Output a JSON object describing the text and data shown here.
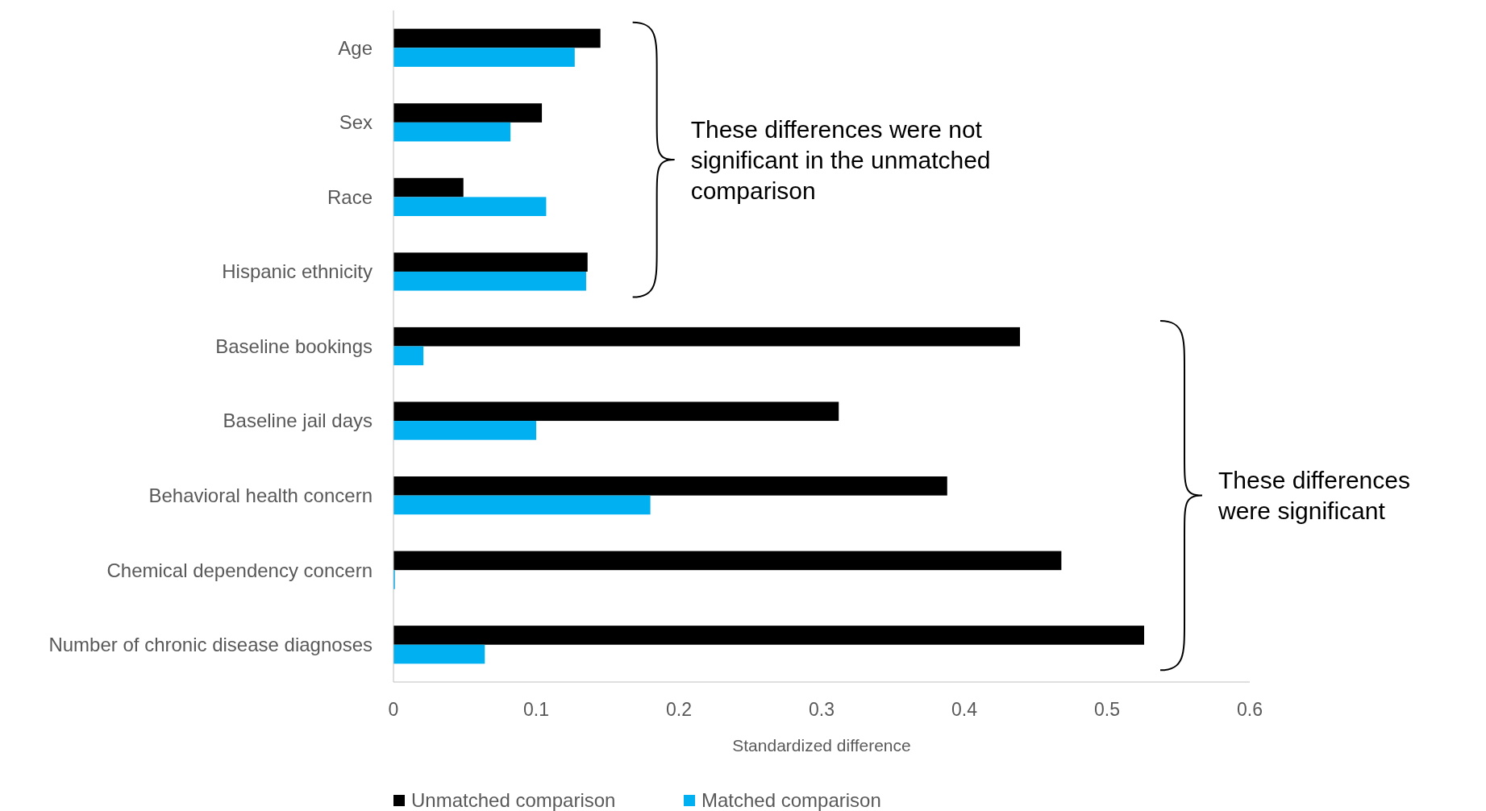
{
  "chart_data": {
    "type": "bar",
    "orientation": "horizontal",
    "xlabel": "Standardized difference",
    "categories": [
      "Age",
      "Sex",
      "Race",
      "Hispanic ethnicity",
      "Baseline bookings",
      "Baseline jail days",
      "Behavioral health concern",
      "Chemical dependency concern",
      "Number of chronic disease diagnoses"
    ],
    "series": [
      {
        "name": "Unmatched comparison",
        "color": "#000000",
        "values": [
          0.145,
          0.104,
          0.049,
          0.136,
          0.439,
          0.312,
          0.388,
          0.468,
          0.526
        ]
      },
      {
        "name": "Matched comparison",
        "color": "#00b0f0",
        "values": [
          0.127,
          0.082,
          0.107,
          0.135,
          0.021,
          0.1,
          0.18,
          0.001,
          0.064
        ]
      }
    ],
    "xlim": [
      0,
      0.6
    ],
    "xticks": [
      0,
      0.1,
      0.2,
      0.3,
      0.4,
      0.5,
      0.6
    ],
    "grid": false,
    "legend": "bottom",
    "annotations": [
      "These differences were not significant in the unmatched comparison",
      "These differences were significant"
    ]
  }
}
